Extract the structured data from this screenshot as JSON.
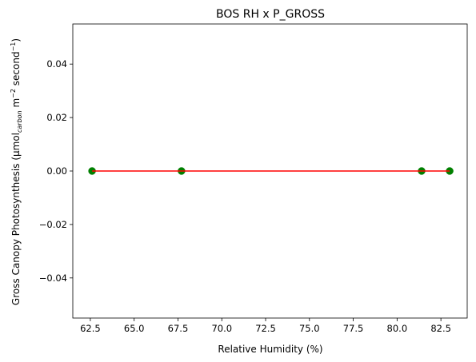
{
  "chart_data": {
    "type": "scatter",
    "title": "BOS RH x P_GROSS",
    "xlabel": "Relative Humidity (%)",
    "ylabel_main": "Gross Canopy Photosynthesis (µmol",
    "ylabel_sub": "carbon",
    "ylabel_mid": " m",
    "ylabel_sup1": "−2",
    "ylabel_mid2": " second",
    "ylabel_sup2": "−1",
    "ylabel_end": ")",
    "xlim": [
      61.5,
      84.0
    ],
    "ylim": [
      -0.055,
      0.055
    ],
    "xticks": [
      62.5,
      65.0,
      67.5,
      70.0,
      72.5,
      75.0,
      77.5,
      80.0,
      82.5
    ],
    "xtick_labels": [
      "62.5",
      "65.0",
      "67.5",
      "70.0",
      "72.5",
      "75.0",
      "77.5",
      "80.0",
      "82.5"
    ],
    "yticks": [
      -0.04,
      -0.02,
      0.0,
      0.02,
      0.04
    ],
    "ytick_labels": [
      "−0.04",
      "−0.02",
      "0.00",
      "0.02",
      "0.04"
    ],
    "grid": false,
    "series": [
      {
        "kind": "scatter",
        "color": "#008000",
        "x": [
          62.6,
          67.7,
          81.4,
          83.0
        ],
        "y": [
          0.0,
          0.0,
          0.0,
          0.0
        ]
      },
      {
        "kind": "line",
        "color": "#ff0000",
        "x": [
          62.6,
          83.0
        ],
        "y": [
          0.0,
          0.0
        ]
      }
    ]
  }
}
